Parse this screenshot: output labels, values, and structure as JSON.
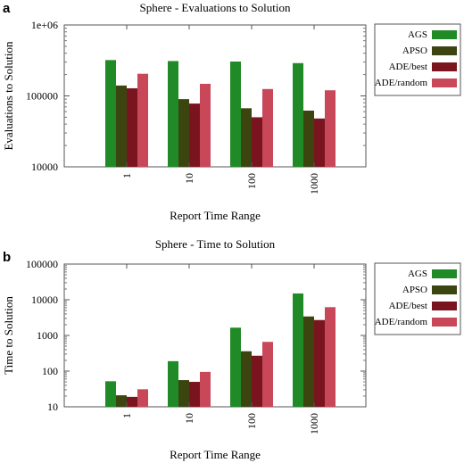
{
  "chart_data": [
    {
      "panel": "a",
      "type": "bar",
      "title": "Sphere - Evaluations to Solution",
      "xlabel": "Report Time Range",
      "ylabel": "Evaluations to Solution",
      "yscale": "log",
      "ylim": [
        10000,
        1000000
      ],
      "yticks": [
        "10000",
        "100000",
        "1e+06"
      ],
      "categories": [
        "1",
        "10",
        "100",
        "1000"
      ],
      "legend": "top-right",
      "series": [
        {
          "name": "AGS",
          "color": "#1f8a26",
          "values": [
            320000,
            310000,
            305000,
            290000
          ]
        },
        {
          "name": "APSO",
          "color": "#3c4410",
          "values": [
            140000,
            90000,
            67000,
            62000
          ]
        },
        {
          "name": "ADE/best",
          "color": "#7a1520",
          "values": [
            128000,
            78000,
            50000,
            48000
          ]
        },
        {
          "name": "ADE/random",
          "color": "#c8485a",
          "values": [
            205000,
            148000,
            125000,
            120000
          ]
        }
      ]
    },
    {
      "panel": "b",
      "type": "bar",
      "title": "Sphere - Time to Solution",
      "xlabel": "Report Time Range",
      "ylabel": "Time to Solution",
      "yscale": "log",
      "ylim": [
        10,
        100000
      ],
      "yticks": [
        "10",
        "100",
        "1000",
        "10000",
        "100000"
      ],
      "categories": [
        "1",
        "10",
        "100",
        "1000"
      ],
      "legend": "top-right",
      "series": [
        {
          "name": "AGS",
          "color": "#1f8a26",
          "values": [
            52,
            190,
            1650,
            15000
          ]
        },
        {
          "name": "APSO",
          "color": "#3c4410",
          "values": [
            21,
            56,
            360,
            3400
          ]
        },
        {
          "name": "ADE/best",
          "color": "#7a1520",
          "values": [
            19,
            50,
            270,
            2700
          ]
        },
        {
          "name": "ADE/random",
          "color": "#c8485a",
          "values": [
            31,
            95,
            660,
            6200
          ]
        }
      ]
    }
  ]
}
